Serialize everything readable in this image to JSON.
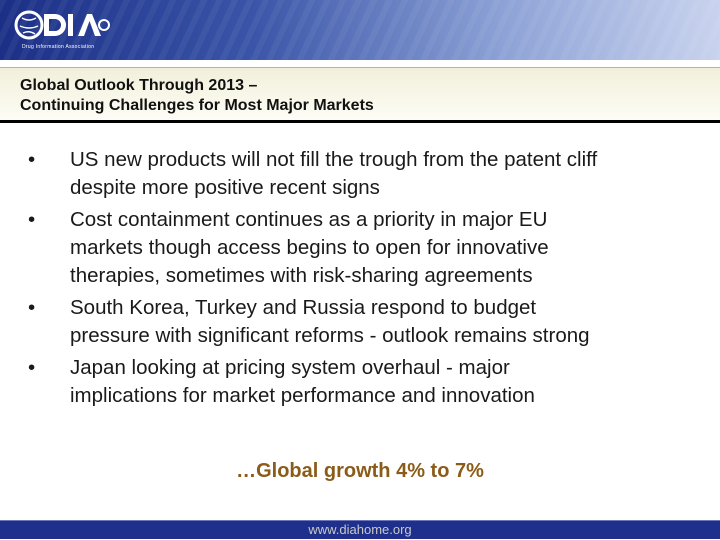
{
  "header": {
    "logo_text": "DIA",
    "logo_tagline": "Drug Information Association",
    "colors": {
      "band_dark": "#1b2f86",
      "band_light": "#c9d3ee"
    }
  },
  "slide": {
    "title_line1": "Global Outlook Through 2013 –",
    "title_line2": "Continuing Challenges for Most Major Markets",
    "bullet_symbol": "•",
    "bullets": [
      {
        "line1": "US new products will not fill the trough from the patent cliff",
        "line2": "despite more positive recent signs"
      },
      {
        "line1": "Cost containment continues as a priority in major EU",
        "line2": "markets though access begins to open for innovative",
        "line3": "therapies, sometimes with risk-sharing agreements"
      },
      {
        "line1": "South Korea, Turkey and Russia respond to budget",
        "line2": "pressure with significant reforms - outlook remains strong"
      },
      {
        "line1": "Japan looking at pricing system overhaul - major",
        "line2": "implications for market performance and innovation"
      }
    ],
    "closing_text": "…Global growth 4% to 7%",
    "closing_color": "#8a5c18"
  },
  "footer": {
    "url": "www.diahome.org",
    "color": "#1e2f8c"
  }
}
